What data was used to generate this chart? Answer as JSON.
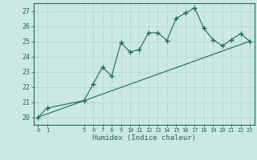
{
  "xlabel": "Humidex (Indice chaleur)",
  "background_color": "#cce8e4",
  "grid_color": "#b0d8d0",
  "line_color": "#1a6b5a",
  "xlim": [
    -0.5,
    23.5
  ],
  "ylim": [
    19.5,
    27.5
  ],
  "yticks": [
    20,
    21,
    22,
    23,
    24,
    25,
    26,
    27
  ],
  "xticks": [
    0,
    1,
    5,
    6,
    7,
    8,
    9,
    10,
    11,
    12,
    13,
    14,
    15,
    16,
    17,
    18,
    19,
    20,
    21,
    22,
    23
  ],
  "scatter_x": [
    0,
    1,
    5,
    6,
    7,
    8,
    9,
    10,
    11,
    12,
    13,
    14,
    15,
    16,
    17,
    18,
    19,
    20,
    21,
    22,
    23
  ],
  "scatter_y": [
    20.0,
    20.6,
    21.1,
    22.2,
    23.3,
    22.7,
    24.9,
    24.3,
    24.45,
    25.55,
    25.55,
    25.05,
    26.5,
    26.85,
    27.2,
    25.85,
    25.1,
    24.7,
    25.1,
    25.5,
    25.0
  ],
  "trend_x": [
    0,
    23
  ],
  "trend_y": [
    20.0,
    25.0
  ]
}
